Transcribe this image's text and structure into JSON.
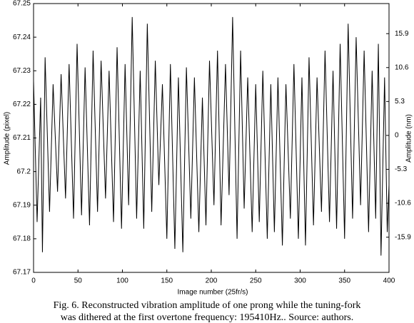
{
  "chart_data": {
    "type": "line",
    "xlabel": "Image number (25fr/s)",
    "ylabel": "Amplitude (pixel)",
    "y2label": "Amplitude (nm)",
    "caption": [
      "Fig. 6. Reconstructed vibration amplitude of one prong while the tuning-fork",
      "was dithered at the first overtone frequency: 195410Hz.. Source: authors."
    ],
    "x": [
      0,
      4,
      8,
      10,
      13,
      18,
      22,
      27,
      31,
      36,
      40,
      45,
      49,
      54,
      58,
      63,
      67,
      72,
      76,
      81,
      85,
      90,
      94,
      99,
      103,
      107,
      111,
      116,
      120,
      124,
      128,
      133,
      137,
      141,
      145,
      150,
      154,
      159,
      163,
      168,
      172,
      177,
      181,
      186,
      190,
      194,
      198,
      203,
      207,
      211,
      216,
      220,
      224,
      229,
      233,
      237,
      241,
      246,
      250,
      254,
      258,
      263,
      267,
      271,
      275,
      280,
      284,
      289,
      293,
      298,
      302,
      306,
      310,
      315,
      319,
      324,
      328,
      333,
      337,
      341,
      345,
      350,
      354,
      359,
      363,
      368,
      372,
      377,
      381,
      385,
      388,
      391,
      395,
      398,
      400
    ],
    "series": [
      {
        "color": "#000000",
        "values": [
          67.227,
          67.185,
          67.222,
          67.176,
          67.234,
          67.188,
          67.226,
          67.194,
          67.229,
          67.192,
          67.232,
          67.186,
          67.238,
          67.187,
          67.231,
          67.184,
          67.236,
          67.188,
          67.233,
          67.192,
          67.23,
          67.185,
          67.237,
          67.183,
          67.232,
          67.19,
          67.246,
          67.186,
          67.23,
          67.183,
          67.244,
          67.188,
          67.233,
          67.196,
          67.226,
          67.18,
          67.232,
          67.177,
          67.228,
          67.176,
          67.231,
          67.186,
          67.228,
          67.182,
          67.222,
          67.184,
          67.233,
          67.19,
          67.236,
          67.184,
          67.232,
          67.193,
          67.246,
          67.18,
          67.236,
          67.189,
          67.228,
          67.182,
          67.226,
          67.185,
          67.23,
          67.18,
          67.226,
          67.182,
          67.228,
          67.178,
          67.226,
          67.186,
          67.232,
          67.18,
          67.228,
          67.178,
          67.234,
          67.184,
          67.228,
          67.188,
          67.236,
          67.185,
          67.23,
          67.183,
          67.238,
          67.18,
          67.244,
          67.186,
          67.24,
          67.19,
          67.236,
          67.182,
          67.23,
          67.186,
          67.238,
          67.175,
          67.228,
          67.182,
          67.196
        ]
      }
    ],
    "xlim": [
      0,
      400
    ],
    "xticks": [
      0,
      50,
      100,
      150,
      200,
      250,
      300,
      350,
      400
    ],
    "ylim": [
      67.17,
      67.25
    ],
    "yticks": [
      67.17,
      67.18,
      67.19,
      67.2,
      67.21,
      67.22,
      67.23,
      67.24,
      67.25
    ],
    "y2lim": [
      -21.4,
      20.6
    ],
    "y2ticks": [
      -15.9,
      -10.6,
      -5.3,
      0,
      5.3,
      10.6,
      15.9
    ]
  }
}
